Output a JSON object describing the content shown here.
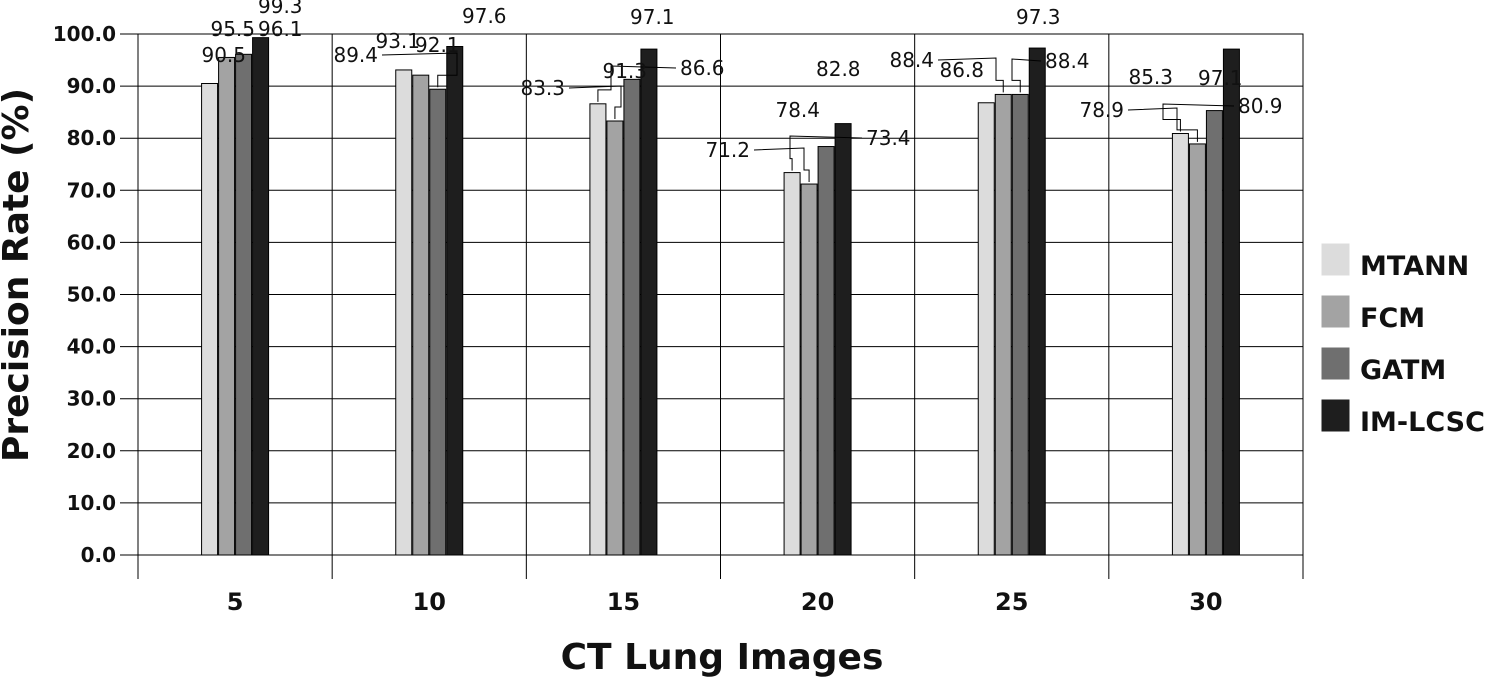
{
  "chart_data": {
    "type": "bar",
    "title": "",
    "xlabel": "CT Lung Images",
    "ylabel": "Precision Rate (%)",
    "categories": [
      "5",
      "10",
      "15",
      "20",
      "25",
      "30"
    ],
    "yticks": [
      "0.0",
      "10.0",
      "20.0",
      "30.0",
      "40.0",
      "50.0",
      "60.0",
      "70.0",
      "80.0",
      "90.0",
      "100.0"
    ],
    "ylim": [
      0,
      100
    ],
    "grid": true,
    "legend_position": "right",
    "series": [
      {
        "name": "MTANN",
        "color": "#dcdcdc",
        "values": [
          90.5,
          93.1,
          86.6,
          73.4,
          86.8,
          80.9
        ]
      },
      {
        "name": "FCM",
        "color": "#a3a3a3",
        "values": [
          95.5,
          92.1,
          83.3,
          71.2,
          88.4,
          78.9
        ]
      },
      {
        "name": "GATM",
        "color": "#6f6f6f",
        "values": [
          96.1,
          89.4,
          91.3,
          78.4,
          88.4,
          85.3
        ]
      },
      {
        "name": "IM-LCSC",
        "color": "#1e1e1e",
        "values": [
          99.3,
          97.6,
          97.1,
          82.8,
          97.3,
          97.1
        ]
      }
    ]
  }
}
